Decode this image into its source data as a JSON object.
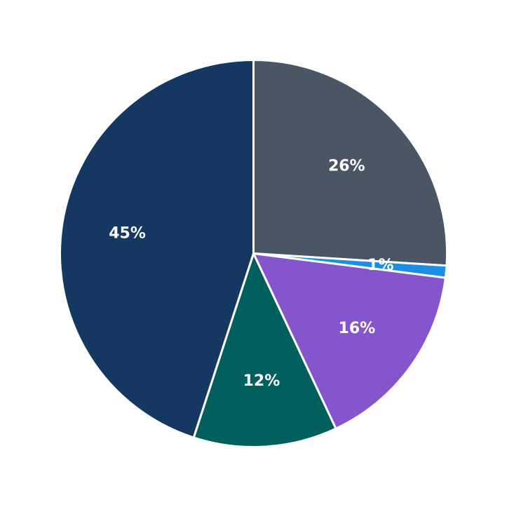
{
  "chart_data": {
    "type": "pie",
    "title": "",
    "start_angle_deg": 0,
    "direction": "clockwise",
    "slices": [
      {
        "value": 26,
        "label": "26%",
        "color": "#4a5565"
      },
      {
        "value": 1,
        "label": "1%",
        "color": "#1a8fe3"
      },
      {
        "value": 16,
        "label": "16%",
        "color": "#8455cc"
      },
      {
        "value": 12,
        "label": "12%",
        "color": "#01605e"
      },
      {
        "value": 45,
        "label": "45%",
        "color": "#143861"
      }
    ],
    "slice_border_color": "#ffffff",
    "label_color": "#ffffff",
    "legend": "none"
  }
}
